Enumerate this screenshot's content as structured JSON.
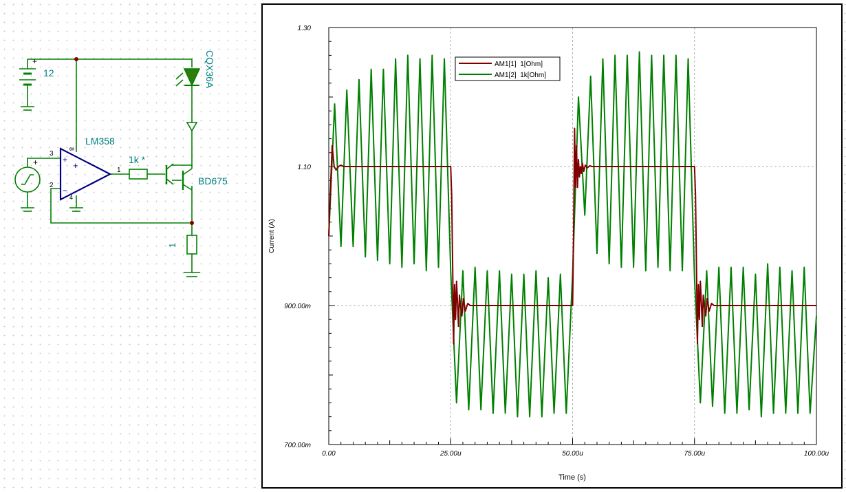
{
  "schematic": {
    "battery_value": "12",
    "battery_plus": "+",
    "opamp_name": "LM358",
    "opamp_pins": {
      "in_plus": "3",
      "in_minus": "2",
      "vcc": "8",
      "gnd": "4",
      "out": "1"
    },
    "opamp_signs": {
      "plus": "+",
      "minus": "−",
      "center_plus": "+"
    },
    "source_plus": "+",
    "resistor_base": "1k *",
    "transistor": "BD675",
    "led": "CQX36A",
    "resistor_sense": "1",
    "colors": {
      "wire": "#008000",
      "opamp": "#000080",
      "label": "#008080",
      "node": "#800000"
    }
  },
  "chart_data": {
    "type": "line",
    "title": "",
    "xlabel": "Time (s)",
    "ylabel": "Current (A)",
    "xlim": [
      0,
      0.0001
    ],
    "ylim": [
      0.7,
      1.3
    ],
    "xticks": [
      0,
      2.5e-05,
      5e-05,
      7.5e-05,
      0.0001
    ],
    "xtick_labels": [
      "0.00",
      "25.00u",
      "50.00u",
      "75.00u",
      "100.00u"
    ],
    "yticks": [
      0.7,
      0.9,
      1.1,
      1.3
    ],
    "ytick_labels": [
      "700.00m",
      "900.00m",
      "1.10",
      "1.30"
    ],
    "grid": true,
    "legend": "top-left",
    "series": [
      {
        "name": "AM1[1]  1[Ohm]",
        "color": "#800000",
        "x": [
          0,
          3e-07,
          7e-07,
          1.1e-06,
          1.5e-06,
          2e-06,
          2.5e-06,
          3e-06,
          1e-05,
          2e-05,
          2.5e-05,
          2.52e-05,
          2.54e-05,
          2.56e-05,
          2.58e-05,
          2.6e-05,
          2.62e-05,
          2.64e-05,
          2.66e-05,
          2.68e-05,
          2.7e-05,
          2.73e-05,
          2.76e-05,
          2.8e-05,
          2.85e-05,
          2.9e-05,
          3.5e-05,
          4e-05,
          5e-05,
          5.02e-05,
          5.04e-05,
          5.06e-05,
          5.08e-05,
          5.1e-05,
          5.12e-05,
          5.14e-05,
          5.16e-05,
          5.18e-05,
          5.2e-05,
          5.23e-05,
          5.26e-05,
          5.3e-05,
          5.35e-05,
          5.4e-05,
          6e-05,
          7e-05,
          7.5e-05,
          7.52e-05,
          7.54e-05,
          7.56e-05,
          7.58e-05,
          7.6e-05,
          7.62e-05,
          7.64e-05,
          7.66e-05,
          7.68e-05,
          7.7e-05,
          7.73e-05,
          7.76e-05,
          7.8e-05,
          7.85e-05,
          7.9e-05,
          9e-05,
          0.0001
        ],
        "y": [
          1.0,
          1.06,
          1.13,
          1.1,
          1.095,
          1.1,
          1.102,
          1.1,
          1.1,
          1.1,
          1.1,
          1.06,
          0.96,
          0.845,
          0.93,
          0.88,
          0.935,
          0.905,
          0.87,
          0.915,
          0.9,
          0.885,
          0.91,
          0.892,
          0.903,
          0.9,
          0.9,
          0.9,
          0.9,
          1.0,
          1.155,
          1.07,
          1.13,
          1.07,
          1.11,
          1.085,
          1.1,
          1.09,
          1.105,
          1.093,
          1.102,
          1.098,
          1.101,
          1.1,
          1.1,
          1.1,
          1.1,
          1.06,
          0.96,
          0.845,
          0.93,
          0.88,
          0.935,
          0.905,
          0.87,
          0.915,
          0.9,
          0.885,
          0.91,
          0.892,
          0.903,
          0.9,
          0.9,
          0.9
        ]
      },
      {
        "name": "AM1[2]  1k[Ohm]",
        "color": "#008000",
        "x": [
          0,
          1.2e-06,
          2.5e-06,
          3.7e-06,
          5e-06,
          6.2e-06,
          7.5e-06,
          8.7e-06,
          1e-05,
          1.12e-05,
          1.25e-05,
          1.37e-05,
          1.5e-05,
          1.62e-05,
          1.75e-05,
          1.87e-05,
          2e-05,
          2.12e-05,
          2.25e-05,
          2.37e-05,
          2.5e-05,
          2.62e-05,
          2.75e-05,
          2.87e-05,
          3e-05,
          3.12e-05,
          3.25e-05,
          3.37e-05,
          3.5e-05,
          3.62e-05,
          3.75e-05,
          3.87e-05,
          4e-05,
          4.12e-05,
          4.25e-05,
          4.37e-05,
          4.5e-05,
          4.62e-05,
          4.75e-05,
          4.87e-05,
          5e-05,
          5.12e-05,
          5.25e-05,
          5.37e-05,
          5.5e-05,
          5.62e-05,
          5.75e-05,
          5.87e-05,
          6e-05,
          6.12e-05,
          6.25e-05,
          6.37e-05,
          6.5e-05,
          6.62e-05,
          6.75e-05,
          6.87e-05,
          7e-05,
          7.12e-05,
          7.25e-05,
          7.37e-05,
          7.5e-05,
          7.62e-05,
          7.75e-05,
          7.87e-05,
          8e-05,
          8.12e-05,
          8.25e-05,
          8.37e-05,
          8.5e-05,
          8.62e-05,
          8.75e-05,
          8.87e-05,
          9e-05,
          9.12e-05,
          9.25e-05,
          9.37e-05,
          9.5e-05,
          9.62e-05,
          9.75e-05,
          9.87e-05,
          0.0001
        ],
        "y": [
          1.0,
          1.19,
          0.985,
          1.21,
          0.985,
          1.225,
          0.97,
          1.24,
          0.965,
          1.24,
          0.96,
          1.255,
          0.955,
          1.26,
          0.96,
          1.255,
          0.95,
          1.26,
          0.955,
          1.255,
          0.95,
          0.76,
          0.95,
          0.75,
          0.955,
          0.75,
          0.95,
          0.745,
          0.95,
          0.745,
          0.945,
          0.74,
          0.945,
          0.74,
          0.95,
          0.74,
          0.94,
          0.745,
          0.945,
          0.745,
          0.945,
          1.2,
          1.03,
          1.23,
          0.975,
          1.255,
          0.96,
          1.26,
          0.955,
          1.26,
          0.955,
          1.265,
          0.95,
          1.26,
          0.955,
          1.26,
          0.95,
          1.26,
          0.95,
          1.255,
          0.94,
          0.76,
          0.95,
          0.755,
          0.955,
          0.745,
          0.955,
          0.745,
          0.955,
          0.75,
          0.945,
          0.74,
          0.96,
          0.745,
          0.955,
          0.745,
          0.95,
          0.745,
          0.955,
          0.745,
          0.885
        ]
      }
    ]
  }
}
